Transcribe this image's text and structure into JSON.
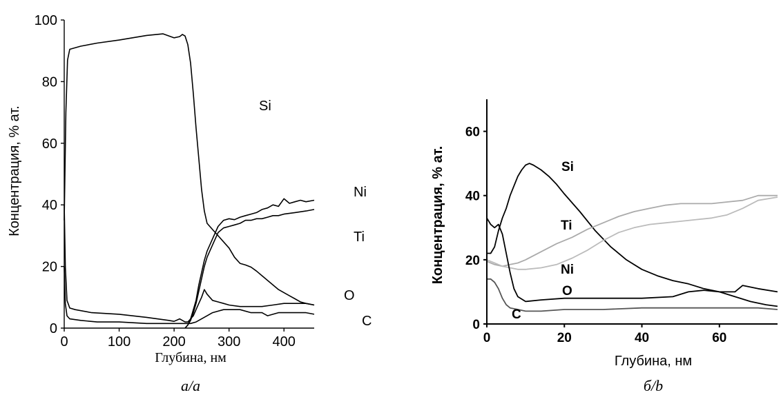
{
  "chart_data": [
    {
      "type": "line",
      "panel_label": "a/a",
      "xlabel": "Глубина, нм",
      "ylabel": "Концентрация, % ат.",
      "xlim": [
        0,
        455
      ],
      "ylim": [
        0,
        100
      ],
      "xticks": [
        0,
        100,
        200,
        300,
        400
      ],
      "yticks": [
        0,
        20,
        40,
        60,
        80,
        100
      ],
      "grid": false,
      "legend": "none",
      "series": [
        {
          "name": "Si",
          "color": "#000000",
          "points": [
            [
              0,
              35
            ],
            [
              3,
              70
            ],
            [
              6,
              87
            ],
            [
              10,
              90.5
            ],
            [
              30,
              91.5
            ],
            [
              60,
              92.5
            ],
            [
              100,
              93.5
            ],
            [
              150,
              95
            ],
            [
              180,
              95.5
            ],
            [
              200,
              94.2
            ],
            [
              210,
              94.6
            ],
            [
              215,
              95.3
            ],
            [
              220,
              94.8
            ],
            [
              225,
              92
            ],
            [
              230,
              86
            ],
            [
              235,
              76
            ],
            [
              240,
              65
            ],
            [
              245,
              55
            ],
            [
              250,
              45
            ],
            [
              255,
              38
            ],
            [
              260,
              34
            ],
            [
              270,
              32
            ],
            [
              280,
              30
            ],
            [
              290,
              28
            ],
            [
              300,
              26
            ],
            [
              310,
              23
            ],
            [
              320,
              21
            ],
            [
              330,
              20.5
            ],
            [
              340,
              19.8
            ],
            [
              350,
              18.5
            ],
            [
              360,
              17
            ],
            [
              370,
              15.5
            ],
            [
              380,
              14
            ],
            [
              390,
              12.5
            ],
            [
              400,
              11.5
            ],
            [
              410,
              10.5
            ],
            [
              420,
              9.5
            ],
            [
              430,
              8.5
            ],
            [
              440,
              8
            ],
            [
              455,
              7.5
            ]
          ]
        },
        {
          "name": "Ni",
          "color": "#000000",
          "points": [
            [
              220,
              0
            ],
            [
              225,
              1
            ],
            [
              230,
              3
            ],
            [
              235,
              6
            ],
            [
              240,
              9
            ],
            [
              245,
              14
            ],
            [
              250,
              18
            ],
            [
              255,
              22
            ],
            [
              260,
              25
            ],
            [
              270,
              29
            ],
            [
              280,
              33
            ],
            [
              290,
              35
            ],
            [
              300,
              35.5
            ],
            [
              310,
              35.2
            ],
            [
              320,
              36
            ],
            [
              330,
              36.5
            ],
            [
              340,
              37
            ],
            [
              350,
              37.5
            ],
            [
              360,
              38.5
            ],
            [
              370,
              39
            ],
            [
              380,
              40
            ],
            [
              390,
              39.5
            ],
            [
              400,
              42
            ],
            [
              410,
              40.5
            ],
            [
              420,
              41
            ],
            [
              430,
              41.5
            ],
            [
              440,
              41
            ],
            [
              455,
              41.5
            ]
          ]
        },
        {
          "name": "Ti",
          "color": "#000000",
          "points": [
            [
              220,
              0
            ],
            [
              225,
              1
            ],
            [
              230,
              2.5
            ],
            [
              235,
              5
            ],
            [
              240,
              8
            ],
            [
              245,
              12
            ],
            [
              250,
              16
            ],
            [
              255,
              20
            ],
            [
              260,
              23
            ],
            [
              270,
              27
            ],
            [
              280,
              31
            ],
            [
              290,
              32.5
            ],
            [
              300,
              33
            ],
            [
              310,
              33.5
            ],
            [
              320,
              34
            ],
            [
              330,
              35
            ],
            [
              340,
              35
            ],
            [
              350,
              35.5
            ],
            [
              360,
              35.5
            ],
            [
              370,
              36
            ],
            [
              380,
              36.5
            ],
            [
              390,
              36.5
            ],
            [
              400,
              37
            ],
            [
              420,
              37.5
            ],
            [
              440,
              38
            ],
            [
              455,
              38.5
            ]
          ]
        },
        {
          "name": "O",
          "color": "#000000",
          "points": [
            [
              0,
              40
            ],
            [
              2,
              20
            ],
            [
              5,
              9
            ],
            [
              10,
              6.5
            ],
            [
              20,
              6
            ],
            [
              50,
              5
            ],
            [
              100,
              4.5
            ],
            [
              150,
              3.5
            ],
            [
              190,
              2.5
            ],
            [
              200,
              2.2
            ],
            [
              210,
              3
            ],
            [
              220,
              2
            ],
            [
              225,
              2
            ],
            [
              230,
              3
            ],
            [
              235,
              4
            ],
            [
              240,
              6
            ],
            [
              245,
              8
            ],
            [
              250,
              10
            ],
            [
              255,
              12.5
            ],
            [
              260,
              11
            ],
            [
              270,
              9
            ],
            [
              280,
              8.5
            ],
            [
              290,
              8
            ],
            [
              300,
              7.5
            ],
            [
              320,
              7
            ],
            [
              340,
              7
            ],
            [
              360,
              7
            ],
            [
              380,
              7.5
            ],
            [
              400,
              8
            ],
            [
              420,
              8
            ],
            [
              440,
              8
            ],
            [
              455,
              7.5
            ]
          ]
        },
        {
          "name": "C",
          "color": "#000000",
          "points": [
            [
              0,
              20
            ],
            [
              2,
              8
            ],
            [
              5,
              4
            ],
            [
              10,
              3
            ],
            [
              30,
              2.5
            ],
            [
              60,
              2
            ],
            [
              100,
              2
            ],
            [
              150,
              1.5
            ],
            [
              200,
              1.5
            ],
            [
              220,
              1.5
            ],
            [
              230,
              1.5
            ],
            [
              240,
              2
            ],
            [
              250,
              3
            ],
            [
              260,
              4
            ],
            [
              270,
              5
            ],
            [
              280,
              5.5
            ],
            [
              290,
              6
            ],
            [
              300,
              6
            ],
            [
              320,
              6
            ],
            [
              340,
              5
            ],
            [
              360,
              5
            ],
            [
              370,
              4
            ],
            [
              380,
              4.5
            ],
            [
              390,
              5
            ],
            [
              400,
              5
            ],
            [
              420,
              5
            ],
            [
              440,
              5
            ],
            [
              455,
              4.5
            ]
          ]
        }
      ]
    },
    {
      "type": "line",
      "panel_label": "б/b",
      "xlabel": "Глубина, нм",
      "ylabel": "Концентрация, % ат.",
      "xlim": [
        0,
        75
      ],
      "ylim": [
        0,
        70
      ],
      "xticks": [
        0,
        20,
        40,
        60
      ],
      "yticks": [
        0,
        20,
        40,
        60
      ],
      "grid": false,
      "legend": "none",
      "series": [
        {
          "name": "Si",
          "color": "#000000",
          "points": [
            [
              0,
              22
            ],
            [
              1,
              22
            ],
            [
              2,
              24
            ],
            [
              3,
              29
            ],
            [
              4,
              33
            ],
            [
              5,
              36
            ],
            [
              6,
              40
            ],
            [
              7,
              43
            ],
            [
              8,
              46
            ],
            [
              9,
              48
            ],
            [
              10,
              49.5
            ],
            [
              11,
              50
            ],
            [
              12,
              49.5
            ],
            [
              14,
              48
            ],
            [
              16,
              46
            ],
            [
              18,
              43.5
            ],
            [
              20,
              40.5
            ],
            [
              24,
              35
            ],
            [
              28,
              29
            ],
            [
              32,
              24
            ],
            [
              36,
              20
            ],
            [
              40,
              17
            ],
            [
              44,
              15
            ],
            [
              48,
              13.5
            ],
            [
              52,
              12.5
            ],
            [
              56,
              11
            ],
            [
              60,
              10
            ],
            [
              64,
              8.5
            ],
            [
              68,
              7
            ],
            [
              72,
              6
            ],
            [
              75,
              5.5
            ]
          ]
        },
        {
          "name": "Ti",
          "color": "#aaaaaa",
          "points": [
            [
              0,
              19.5
            ],
            [
              2,
              18.5
            ],
            [
              4,
              18
            ],
            [
              6,
              18.5
            ],
            [
              8,
              19
            ],
            [
              10,
              20
            ],
            [
              14,
              22.5
            ],
            [
              18,
              25
            ],
            [
              22,
              27
            ],
            [
              26,
              29.5
            ],
            [
              30,
              31.5
            ],
            [
              34,
              33.5
            ],
            [
              38,
              35
            ],
            [
              42,
              36
            ],
            [
              46,
              37
            ],
            [
              50,
              37.5
            ],
            [
              54,
              37.5
            ],
            [
              58,
              37.5
            ],
            [
              62,
              38
            ],
            [
              66,
              38.5
            ],
            [
              70,
              40
            ],
            [
              75,
              40
            ]
          ]
        },
        {
          "name": "Ni",
          "color": "#bbbbbb",
          "points": [
            [
              0,
              20
            ],
            [
              2,
              19
            ],
            [
              4,
              18
            ],
            [
              6,
              17.5
            ],
            [
              8,
              17
            ],
            [
              10,
              17
            ],
            [
              14,
              17.5
            ],
            [
              18,
              18.5
            ],
            [
              22,
              20.5
            ],
            [
              26,
              23
            ],
            [
              30,
              26
            ],
            [
              34,
              28.5
            ],
            [
              38,
              30
            ],
            [
              42,
              31
            ],
            [
              46,
              31.5
            ],
            [
              50,
              32
            ],
            [
              54,
              32.5
            ],
            [
              58,
              33
            ],
            [
              62,
              34
            ],
            [
              66,
              36
            ],
            [
              70,
              38.5
            ],
            [
              75,
              39.5
            ]
          ]
        },
        {
          "name": "O",
          "color": "#000000",
          "points": [
            [
              0,
              33
            ],
            [
              1,
              31
            ],
            [
              2,
              30
            ],
            [
              3,
              31
            ],
            [
              4,
              28
            ],
            [
              5,
              22
            ],
            [
              6,
              16
            ],
            [
              7,
              11
            ],
            [
              8,
              8.5
            ],
            [
              10,
              7
            ],
            [
              14,
              7.5
            ],
            [
              20,
              8
            ],
            [
              30,
              8
            ],
            [
              40,
              8
            ],
            [
              48,
              8.5
            ],
            [
              52,
              10
            ],
            [
              56,
              10.5
            ],
            [
              60,
              10
            ],
            [
              64,
              10
            ],
            [
              66,
              12
            ],
            [
              70,
              11
            ],
            [
              75,
              10
            ]
          ]
        },
        {
          "name": "C",
          "color": "#555555",
          "points": [
            [
              0,
              14
            ],
            [
              1,
              14
            ],
            [
              2,
              13
            ],
            [
              3,
              11
            ],
            [
              4,
              8
            ],
            [
              5,
              6
            ],
            [
              6,
              5
            ],
            [
              8,
              4.5
            ],
            [
              10,
              4
            ],
            [
              14,
              4
            ],
            [
              20,
              4.5
            ],
            [
              30,
              4.5
            ],
            [
              40,
              5
            ],
            [
              50,
              5
            ],
            [
              60,
              5
            ],
            [
              70,
              5
            ],
            [
              75,
              4.5
            ]
          ]
        }
      ]
    }
  ]
}
